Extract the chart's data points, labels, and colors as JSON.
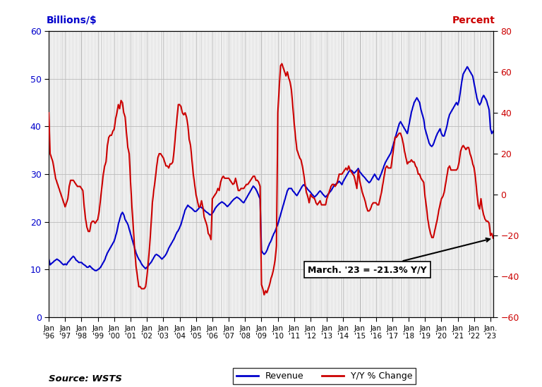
{
  "ylabel_left": "Billions/$",
  "ylabel_right": "Percent",
  "source": "Source: WSTS",
  "annotation": "March. '23 = -21.3% Y/Y",
  "ylim_left": [
    0,
    60
  ],
  "ylim_right": [
    -60,
    80
  ],
  "yticks_left": [
    0,
    10,
    20,
    30,
    40,
    50,
    60
  ],
  "yticks_right": [
    -60,
    -40,
    -20,
    0,
    20,
    40,
    60,
    80
  ],
  "revenue_color": "#0000cc",
  "yoy_color": "#cc0000",
  "background_color": "#ffffff",
  "grid_color": "#bbbbbb",
  "revenue": [
    12.2,
    11.0,
    11.3,
    11.5,
    11.8,
    12.0,
    12.2,
    12.0,
    11.8,
    11.5,
    11.2,
    11.0,
    11.2,
    11.0,
    11.5,
    11.8,
    12.2,
    12.5,
    12.8,
    12.5,
    12.0,
    11.8,
    11.5,
    11.5,
    11.5,
    11.2,
    11.0,
    10.8,
    10.5,
    10.5,
    10.8,
    10.5,
    10.2,
    10.0,
    9.8,
    9.8,
    10.0,
    10.2,
    10.5,
    11.0,
    11.5,
    12.0,
    12.8,
    13.5,
    14.0,
    14.5,
    15.0,
    15.5,
    16.0,
    17.0,
    18.0,
    19.5,
    20.5,
    21.5,
    22.0,
    21.5,
    20.5,
    20.0,
    19.5,
    18.5,
    17.5,
    16.5,
    15.5,
    14.5,
    13.5,
    12.8,
    12.2,
    11.8,
    11.2,
    10.8,
    10.5,
    10.2,
    10.5,
    10.8,
    11.2,
    11.5,
    12.0,
    12.5,
    13.0,
    13.2,
    13.0,
    12.8,
    12.5,
    12.2,
    12.5,
    12.8,
    13.2,
    13.8,
    14.5,
    15.0,
    15.5,
    16.0,
    16.5,
    17.2,
    17.8,
    18.2,
    18.8,
    19.5,
    20.5,
    21.5,
    22.5,
    23.0,
    23.5,
    23.2,
    23.0,
    22.8,
    22.5,
    22.2,
    22.2,
    22.5,
    22.8,
    23.2,
    23.0,
    22.8,
    22.5,
    22.2,
    22.0,
    21.8,
    21.5,
    21.5,
    21.8,
    22.2,
    22.8,
    23.2,
    23.5,
    23.8,
    24.0,
    24.2,
    24.0,
    23.8,
    23.5,
    23.2,
    23.5,
    23.8,
    24.2,
    24.5,
    24.8,
    25.0,
    25.2,
    25.0,
    24.8,
    24.5,
    24.2,
    24.0,
    24.5,
    25.0,
    25.5,
    26.0,
    26.5,
    27.0,
    27.5,
    27.2,
    26.8,
    26.2,
    25.5,
    24.8,
    14.0,
    13.5,
    13.2,
    13.5,
    14.0,
    14.8,
    15.5,
    16.0,
    16.8,
    17.5,
    18.0,
    18.8,
    19.5,
    20.5,
    21.5,
    22.5,
    23.5,
    24.5,
    25.5,
    26.5,
    27.0,
    27.0,
    27.0,
    26.5,
    26.2,
    25.8,
    25.5,
    26.0,
    26.5,
    27.0,
    27.5,
    27.8,
    27.5,
    27.2,
    26.8,
    26.5,
    26.2,
    25.8,
    25.5,
    25.2,
    25.5,
    25.8,
    26.2,
    26.5,
    26.2,
    25.8,
    25.5,
    25.2,
    25.5,
    25.8,
    26.2,
    26.5,
    27.0,
    27.5,
    27.8,
    28.0,
    28.2,
    28.5,
    28.2,
    27.8,
    28.5,
    29.0,
    29.5,
    30.0,
    30.5,
    30.8,
    30.8,
    30.5,
    30.2,
    30.5,
    30.8,
    31.2,
    30.5,
    30.2,
    29.8,
    29.5,
    29.2,
    28.8,
    28.5,
    28.2,
    28.5,
    29.0,
    29.5,
    30.0,
    29.5,
    29.0,
    28.8,
    29.5,
    30.2,
    31.0,
    31.8,
    32.5,
    33.0,
    33.5,
    34.0,
    34.5,
    35.5,
    36.5,
    37.5,
    38.5,
    39.5,
    40.5,
    41.0,
    40.5,
    40.0,
    39.5,
    39.0,
    38.5,
    40.0,
    41.5,
    43.0,
    44.0,
    45.0,
    45.5,
    46.0,
    45.5,
    45.0,
    43.5,
    42.5,
    41.5,
    39.5,
    38.5,
    37.5,
    36.5,
    36.0,
    35.8,
    36.2,
    37.0,
    37.8,
    38.5,
    39.0,
    39.5,
    38.5,
    38.0,
    38.0,
    39.0,
    40.0,
    41.5,
    42.5,
    43.0,
    43.5,
    44.0,
    44.5,
    45.0,
    44.5,
    45.5,
    47.5,
    49.5,
    51.0,
    51.5,
    52.0,
    52.5,
    52.0,
    51.5,
    51.0,
    50.5,
    49.0,
    47.5,
    46.0,
    45.0,
    44.5,
    45.0,
    46.0,
    46.5,
    46.0,
    45.5,
    44.5,
    43.5,
    39.5,
    38.5,
    39.0
  ],
  "yoy": [
    40.0,
    20.0,
    18.0,
    16.0,
    12.0,
    8.0,
    6.0,
    4.0,
    2.0,
    0.0,
    -2.0,
    -4.0,
    -6.0,
    -4.0,
    -2.0,
    4.0,
    7.0,
    7.0,
    7.0,
    6.0,
    5.0,
    4.0,
    4.0,
    4.0,
    3.0,
    2.0,
    -6.0,
    -12.0,
    -16.0,
    -18.0,
    -18.0,
    -14.0,
    -13.0,
    -13.0,
    -14.0,
    -13.0,
    -12.0,
    -8.0,
    -2.0,
    4.0,
    10.0,
    14.0,
    16.0,
    24.0,
    28.0,
    29.0,
    29.0,
    31.0,
    32.0,
    37.0,
    40.0,
    44.0,
    42.0,
    46.0,
    45.0,
    40.0,
    38.0,
    30.0,
    23.0,
    20.0,
    6.0,
    -6.0,
    -16.0,
    -27.0,
    -35.0,
    -40.0,
    -45.0,
    -45.0,
    -46.0,
    -46.0,
    -46.0,
    -45.0,
    -40.0,
    -33.0,
    -25.0,
    -15.0,
    -4.0,
    2.0,
    7.0,
    13.0,
    18.0,
    20.0,
    20.0,
    19.0,
    18.0,
    16.0,
    14.0,
    14.0,
    13.0,
    15.0,
    15.0,
    16.0,
    22.0,
    30.0,
    37.0,
    44.0,
    44.0,
    43.0,
    40.0,
    39.0,
    40.0,
    38.0,
    34.0,
    27.0,
    24.0,
    17.0,
    10.0,
    5.0,
    0.0,
    -3.0,
    -6.0,
    -6.0,
    -3.0,
    -6.0,
    -11.0,
    -13.0,
    -15.0,
    -19.0,
    -20.0,
    -22.0,
    -2.0,
    -1.0,
    0.0,
    1.0,
    3.0,
    2.0,
    6.0,
    8.0,
    9.0,
    8.0,
    8.0,
    8.0,
    8.0,
    7.0,
    6.0,
    5.0,
    5.5,
    8.0,
    5.0,
    2.0,
    2.0,
    3.0,
    3.0,
    3.0,
    4.0,
    5.0,
    5.0,
    6.0,
    7.0,
    8.0,
    9.0,
    9.0,
    7.0,
    7.0,
    6.0,
    4.0,
    -44.0,
    -46.0,
    -49.0,
    -47.0,
    -48.0,
    -46.0,
    -44.0,
    -41.0,
    -39.0,
    -36.0,
    -32.0,
    -25.0,
    40.0,
    52.0,
    63.0,
    64.0,
    62.0,
    60.0,
    58.0,
    60.0,
    57.0,
    55.0,
    51.0,
    43.0,
    35.0,
    28.0,
    22.0,
    20.0,
    18.0,
    17.0,
    14.0,
    10.0,
    5.0,
    1.0,
    -1.0,
    -4.0,
    0.0,
    -1.0,
    -1.5,
    -2.0,
    -4.0,
    -5.0,
    -4.0,
    -3.0,
    -5.0,
    -5.0,
    -5.0,
    -5.0,
    -2.0,
    0.0,
    2.0,
    4.0,
    5.0,
    5.0,
    4.0,
    5.0,
    7.0,
    10.0,
    10.0,
    10.0,
    11.0,
    12.0,
    13.0,
    12.0,
    14.0,
    12.0,
    11.0,
    10.0,
    9.0,
    6.0,
    3.0,
    12.0,
    7.0,
    4.0,
    1.0,
    -1.0,
    -3.0,
    -6.0,
    -8.0,
    -8.0,
    -7.0,
    -5.0,
    -4.0,
    -4.0,
    -4.0,
    -5.0,
    -5.0,
    -2.0,
    1.0,
    5.0,
    9.0,
    13.0,
    14.0,
    13.0,
    13.0,
    13.0,
    18.0,
    23.0,
    28.0,
    28.0,
    29.0,
    30.0,
    30.0,
    28.0,
    25.0,
    21.0,
    18.0,
    15.0,
    16.0,
    16.0,
    17.0,
    16.0,
    16.0,
    14.0,
    13.0,
    10.0,
    10.0,
    8.0,
    7.0,
    6.0,
    -1.0,
    -6.0,
    -12.0,
    -16.0,
    -19.0,
    -21.0,
    -21.0,
    -18.0,
    -15.0,
    -12.0,
    -8.0,
    -5.0,
    -2.0,
    -1.0,
    1.0,
    5.0,
    9.0,
    13.0,
    14.0,
    12.0,
    12.0,
    12.0,
    12.0,
    12.0,
    13.0,
    16.0,
    21.0,
    23.0,
    24.0,
    23.0,
    22.0,
    23.0,
    23.0,
    20.0,
    18.0,
    15.0,
    13.0,
    8.0,
    1.0,
    -5.0,
    -7.0,
    -2.0,
    -7.0,
    -10.0,
    -12.0,
    -13.0,
    -13.0,
    -14.0,
    -20.0,
    -19.0,
    -21.3
  ],
  "xtick_positions": [
    0,
    12,
    24,
    36,
    48,
    60,
    72,
    84,
    96,
    108,
    120,
    132,
    144,
    156,
    168,
    180,
    192,
    204,
    216,
    228,
    240,
    252,
    264,
    276,
    288,
    300,
    312,
    324
  ],
  "xtick_labels": [
    "Jan\n'96",
    "Jan\n'97",
    "Jan\n'98",
    "Jan\n'99",
    "Jan\n'00",
    "Jan\n'01",
    "Jan\n'02",
    "Jan\n'03",
    "Jan\n'04",
    "Jan\n'05",
    "Jan\n'06",
    "Jan\n'07",
    "Jan\n'08",
    "Jan\n'09",
    "Jan\n'10",
    "Jan\n'11",
    "Jan\n'12",
    "Jan\n'13",
    "Jan\n'14",
    "Jan\n'15",
    "Jan\n'16",
    "Jan\n'17",
    "Jan\n'18",
    "Jan\n'19",
    "Jan\n'20",
    "Jan\n'21",
    "Jan\n'22",
    "Jan.\n'23"
  ]
}
